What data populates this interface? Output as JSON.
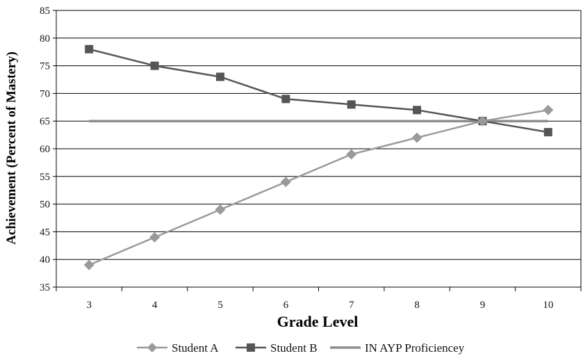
{
  "chart_data": {
    "type": "line",
    "title": "",
    "xlabel": "Grade Level",
    "ylabel": "Achievement (Percent of Mastery)",
    "categories": [
      "3",
      "4",
      "5",
      "6",
      "7",
      "8",
      "9",
      "10"
    ],
    "ylim": [
      35,
      85
    ],
    "yticks": [
      35,
      40,
      45,
      50,
      55,
      60,
      65,
      70,
      75,
      80,
      85
    ],
    "grid": "horizontal",
    "legend_position": "bottom",
    "series": [
      {
        "name": "Student A",
        "values": [
          39,
          44,
          49,
          54,
          59,
          62,
          65,
          67
        ],
        "color": "#9a9a9a",
        "marker": "diamond"
      },
      {
        "name": "Student B",
        "values": [
          78,
          75,
          73,
          69,
          68,
          67,
          65,
          63
        ],
        "color": "#555555",
        "marker": "square"
      },
      {
        "name": "IN AYP Proficiencey",
        "values": [
          65,
          65,
          65,
          65,
          65,
          65,
          65,
          65
        ],
        "color": "#8c8c8c",
        "marker": "none"
      }
    ]
  }
}
